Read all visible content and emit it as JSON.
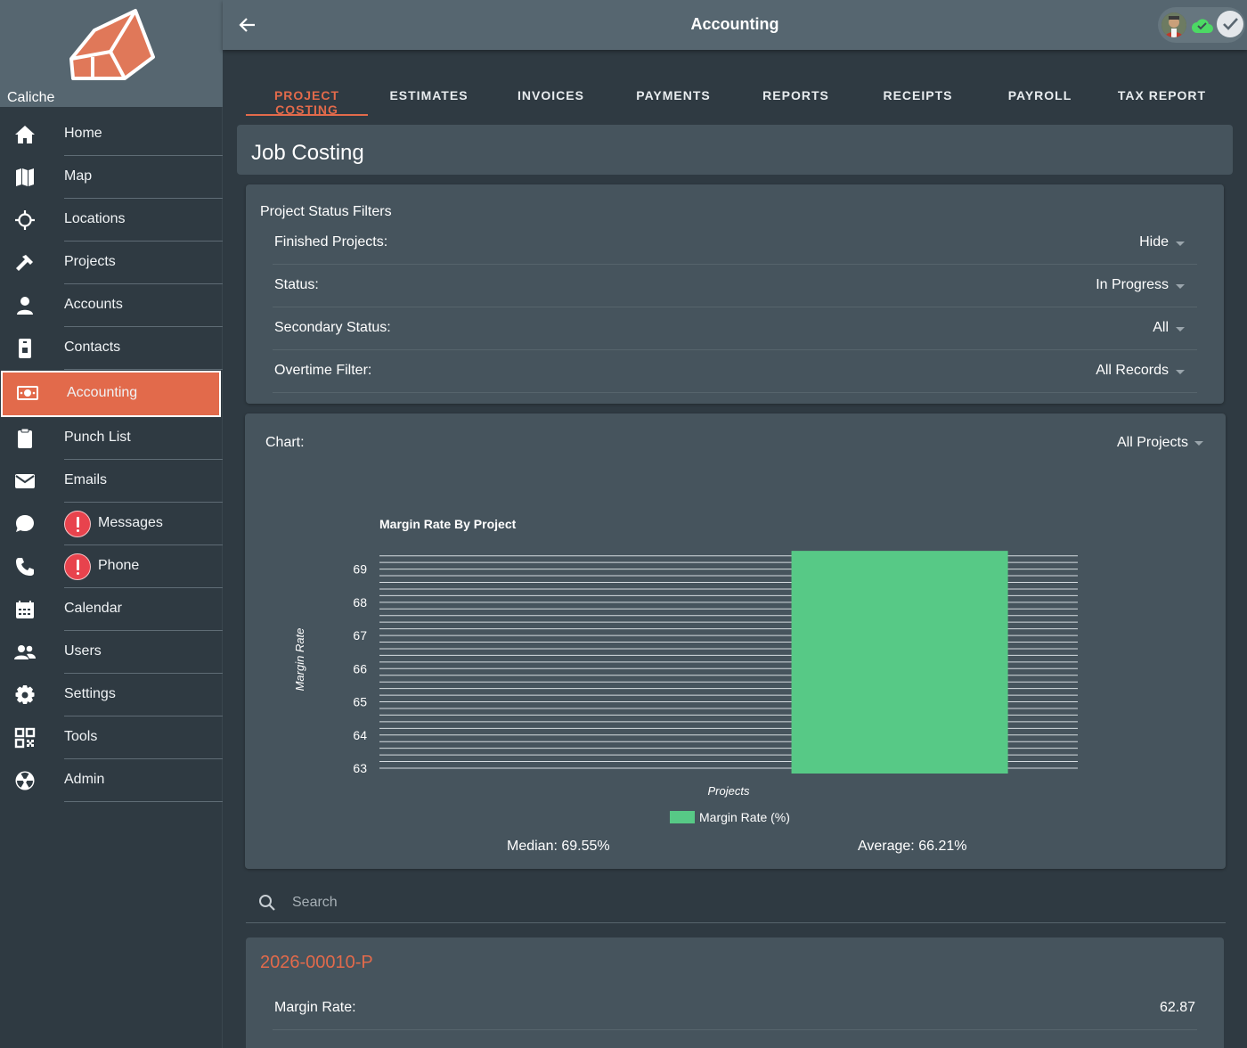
{
  "brand": {
    "name": "Caliche"
  },
  "sidebar": {
    "items": [
      {
        "label": "Home",
        "icon": "home-icon"
      },
      {
        "label": "Map",
        "icon": "map-icon"
      },
      {
        "label": "Locations",
        "icon": "crosshair-icon"
      },
      {
        "label": "Projects",
        "icon": "hammer-icon"
      },
      {
        "label": "Accounts",
        "icon": "person-icon"
      },
      {
        "label": "Contacts",
        "icon": "contact-card-icon"
      },
      {
        "label": "Accounting",
        "icon": "money-icon",
        "active": true
      },
      {
        "label": "Punch List",
        "icon": "clipboard-icon"
      },
      {
        "label": "Emails",
        "icon": "envelope-icon"
      },
      {
        "label": "Messages",
        "icon": "chat-icon",
        "alert": true
      },
      {
        "label": "Phone",
        "icon": "phone-icon",
        "alert": true
      },
      {
        "label": "Calendar",
        "icon": "calendar-icon"
      },
      {
        "label": "Users",
        "icon": "users-icon"
      },
      {
        "label": "Settings",
        "icon": "gear-icon"
      },
      {
        "label": "Tools",
        "icon": "qr-code-icon"
      },
      {
        "label": "Admin",
        "icon": "radiation-icon"
      }
    ]
  },
  "topbar": {
    "title": "Accounting"
  },
  "tabs": [
    {
      "label": "PROJECT COSTING",
      "active": true
    },
    {
      "label": "ESTIMATES"
    },
    {
      "label": "INVOICES"
    },
    {
      "label": "PAYMENTS"
    },
    {
      "label": "REPORTS"
    },
    {
      "label": "RECEIPTS"
    },
    {
      "label": "PAYROLL"
    },
    {
      "label": "TAX REPORT"
    }
  ],
  "page": {
    "title": "Job Costing"
  },
  "filters": {
    "section_title": "Project Status Filters",
    "rows": [
      {
        "label": "Finished Projects:",
        "value": "Hide"
      },
      {
        "label": "Status:",
        "value": "In Progress"
      },
      {
        "label": "Secondary Status:",
        "value": "All"
      },
      {
        "label": "Overtime Filter:",
        "value": "All Records"
      }
    ]
  },
  "chart": {
    "label": "Chart:",
    "selected": "All Projects",
    "median": "Median: 69.55%",
    "average": "Average: 66.21%"
  },
  "chart_data": {
    "type": "bar",
    "title": "Margin Rate By Project",
    "xlabel": "Projects",
    "ylabel": "Margin Rate",
    "ylim": [
      63,
      69.5
    ],
    "yticks": [
      63,
      64,
      65,
      66,
      67,
      68,
      69
    ],
    "categories": [
      ""
    ],
    "series": [
      {
        "name": "Margin Rate (%)",
        "values": [
          69.55
        ],
        "color": "#57c986"
      }
    ],
    "grid": true,
    "legend": "bottom"
  },
  "search": {
    "placeholder": "Search"
  },
  "project": {
    "id": "2026-00010-P",
    "rows": [
      {
        "label": "Margin Rate:",
        "value": "62.87"
      }
    ]
  },
  "colors": {
    "accent": "#e26a4b",
    "bar": "#57c986",
    "alert": "#e8434d"
  }
}
